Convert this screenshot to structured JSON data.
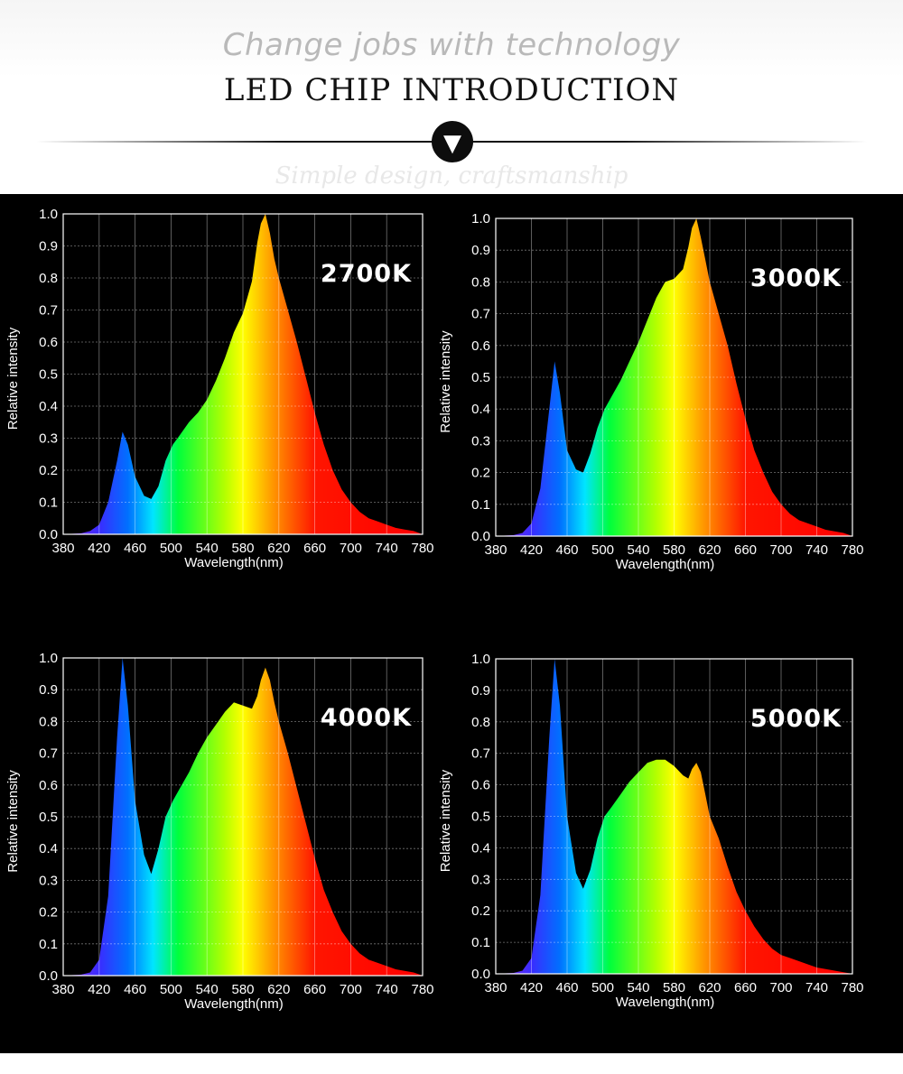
{
  "header": {
    "tagline": "Change jobs with technology",
    "title": "LED CHIP INTRODUCTION",
    "subtagline": "Simple design, craftsmanship",
    "badge_icon": "chevron-down-icon"
  },
  "colors": {
    "panel_bg": "#000000",
    "grid": "#ffffff",
    "tagline": "#b9b9b9"
  },
  "chart_data": [
    {
      "type": "area",
      "label": "2700K",
      "xlabel": "Wavelength(nm)",
      "ylabel": "Relative intensity",
      "xlim": [
        380,
        780
      ],
      "ylim": [
        0,
        1.0
      ],
      "xticks": [
        "380",
        "420",
        "460",
        "500",
        "540",
        "580",
        "620",
        "660",
        "700",
        "740",
        "780"
      ],
      "yticks": [
        "0.0",
        "0.1",
        "0.2",
        "0.3",
        "0.4",
        "0.5",
        "0.6",
        "0.7",
        "0.8",
        "0.9",
        "1.0"
      ],
      "grid": true,
      "x": [
        380,
        400,
        410,
        420,
        430,
        440,
        446,
        452,
        460,
        470,
        478,
        486,
        494,
        502,
        510,
        520,
        530,
        540,
        550,
        560,
        570,
        580,
        590,
        596,
        600,
        605,
        610,
        615,
        620,
        630,
        640,
        650,
        660,
        670,
        680,
        690,
        700,
        710,
        720,
        730,
        740,
        750,
        760,
        770,
        780
      ],
      "y": [
        0.0,
        0.003,
        0.01,
        0.03,
        0.1,
        0.23,
        0.32,
        0.28,
        0.18,
        0.12,
        0.11,
        0.15,
        0.23,
        0.28,
        0.31,
        0.35,
        0.38,
        0.42,
        0.48,
        0.55,
        0.63,
        0.69,
        0.79,
        0.91,
        0.97,
        1.0,
        0.94,
        0.86,
        0.8,
        0.7,
        0.6,
        0.49,
        0.38,
        0.28,
        0.2,
        0.14,
        0.1,
        0.07,
        0.05,
        0.04,
        0.03,
        0.02,
        0.015,
        0.01,
        0.0
      ]
    },
    {
      "type": "area",
      "label": "3000K",
      "xlabel": "Wavelength(nm)",
      "ylabel": "Relative intensity",
      "xlim": [
        380,
        780
      ],
      "ylim": [
        0,
        1.0
      ],
      "xticks": [
        "380",
        "420",
        "460",
        "500",
        "540",
        "580",
        "620",
        "660",
        "700",
        "740",
        "780"
      ],
      "yticks": [
        "0.0",
        "0.1",
        "0.2",
        "0.3",
        "0.4",
        "0.5",
        "0.6",
        "0.7",
        "0.8",
        "0.9",
        "1.0"
      ],
      "grid": true,
      "x": [
        380,
        400,
        410,
        420,
        430,
        440,
        446,
        452,
        460,
        470,
        478,
        486,
        494,
        502,
        510,
        520,
        530,
        540,
        550,
        560,
        570,
        580,
        590,
        596,
        600,
        605,
        610,
        615,
        620,
        630,
        640,
        650,
        660,
        670,
        680,
        690,
        700,
        710,
        720,
        730,
        740,
        750,
        760,
        770,
        780
      ],
      "y": [
        0.0,
        0.003,
        0.01,
        0.04,
        0.15,
        0.4,
        0.55,
        0.45,
        0.27,
        0.21,
        0.2,
        0.26,
        0.34,
        0.4,
        0.44,
        0.49,
        0.55,
        0.61,
        0.68,
        0.75,
        0.8,
        0.81,
        0.84,
        0.91,
        0.97,
        1.0,
        0.94,
        0.87,
        0.8,
        0.7,
        0.6,
        0.48,
        0.37,
        0.27,
        0.2,
        0.14,
        0.1,
        0.07,
        0.05,
        0.04,
        0.03,
        0.02,
        0.015,
        0.01,
        0.0
      ]
    },
    {
      "type": "area",
      "label": "4000K",
      "xlabel": "Wavelength(nm)",
      "ylabel": "Relative intensity",
      "xlim": [
        380,
        780
      ],
      "ylim": [
        0,
        1.0
      ],
      "xticks": [
        "380",
        "420",
        "460",
        "500",
        "540",
        "580",
        "620",
        "660",
        "700",
        "740",
        "780"
      ],
      "yticks": [
        "0.0",
        "0.1",
        "0.2",
        "0.3",
        "0.4",
        "0.5",
        "0.6",
        "0.7",
        "0.8",
        "0.9",
        "1.0"
      ],
      "grid": true,
      "x": [
        380,
        400,
        410,
        420,
        430,
        440,
        446,
        452,
        460,
        470,
        478,
        486,
        494,
        502,
        510,
        520,
        530,
        540,
        550,
        560,
        570,
        580,
        590,
        596,
        600,
        605,
        610,
        615,
        620,
        630,
        640,
        650,
        660,
        670,
        680,
        690,
        700,
        710,
        720,
        730,
        740,
        750,
        760,
        770,
        780
      ],
      "y": [
        0.0,
        0.003,
        0.01,
        0.05,
        0.25,
        0.75,
        1.0,
        0.85,
        0.55,
        0.38,
        0.32,
        0.4,
        0.5,
        0.55,
        0.59,
        0.64,
        0.7,
        0.75,
        0.79,
        0.83,
        0.86,
        0.85,
        0.84,
        0.88,
        0.93,
        0.97,
        0.93,
        0.86,
        0.8,
        0.7,
        0.59,
        0.48,
        0.37,
        0.27,
        0.2,
        0.14,
        0.1,
        0.07,
        0.05,
        0.04,
        0.03,
        0.02,
        0.015,
        0.01,
        0.0
      ]
    },
    {
      "type": "area",
      "label": "5000K",
      "xlabel": "Wavelength(nm)",
      "ylabel": "Relative intensity",
      "xlim": [
        380,
        780
      ],
      "ylim": [
        0,
        1.0
      ],
      "xticks": [
        "380",
        "420",
        "460",
        "500",
        "540",
        "580",
        "620",
        "660",
        "700",
        "740",
        "780"
      ],
      "yticks": [
        "0.0",
        "0.1",
        "0.2",
        "0.3",
        "0.4",
        "0.5",
        "0.6",
        "0.7",
        "0.8",
        "0.9",
        "1.0"
      ],
      "grid": true,
      "x": [
        380,
        400,
        410,
        420,
        430,
        440,
        446,
        452,
        460,
        470,
        478,
        486,
        494,
        502,
        510,
        520,
        530,
        540,
        550,
        560,
        570,
        580,
        590,
        596,
        600,
        605,
        610,
        615,
        620,
        630,
        640,
        650,
        660,
        670,
        680,
        690,
        700,
        710,
        720,
        730,
        740,
        750,
        760,
        770,
        780
      ],
      "y": [
        0.0,
        0.003,
        0.01,
        0.05,
        0.25,
        0.75,
        1.0,
        0.85,
        0.5,
        0.32,
        0.27,
        0.33,
        0.43,
        0.5,
        0.53,
        0.57,
        0.61,
        0.64,
        0.67,
        0.68,
        0.68,
        0.66,
        0.63,
        0.62,
        0.65,
        0.67,
        0.64,
        0.57,
        0.5,
        0.43,
        0.34,
        0.26,
        0.2,
        0.15,
        0.11,
        0.08,
        0.06,
        0.05,
        0.04,
        0.03,
        0.02,
        0.015,
        0.01,
        0.005,
        0.0
      ]
    }
  ]
}
